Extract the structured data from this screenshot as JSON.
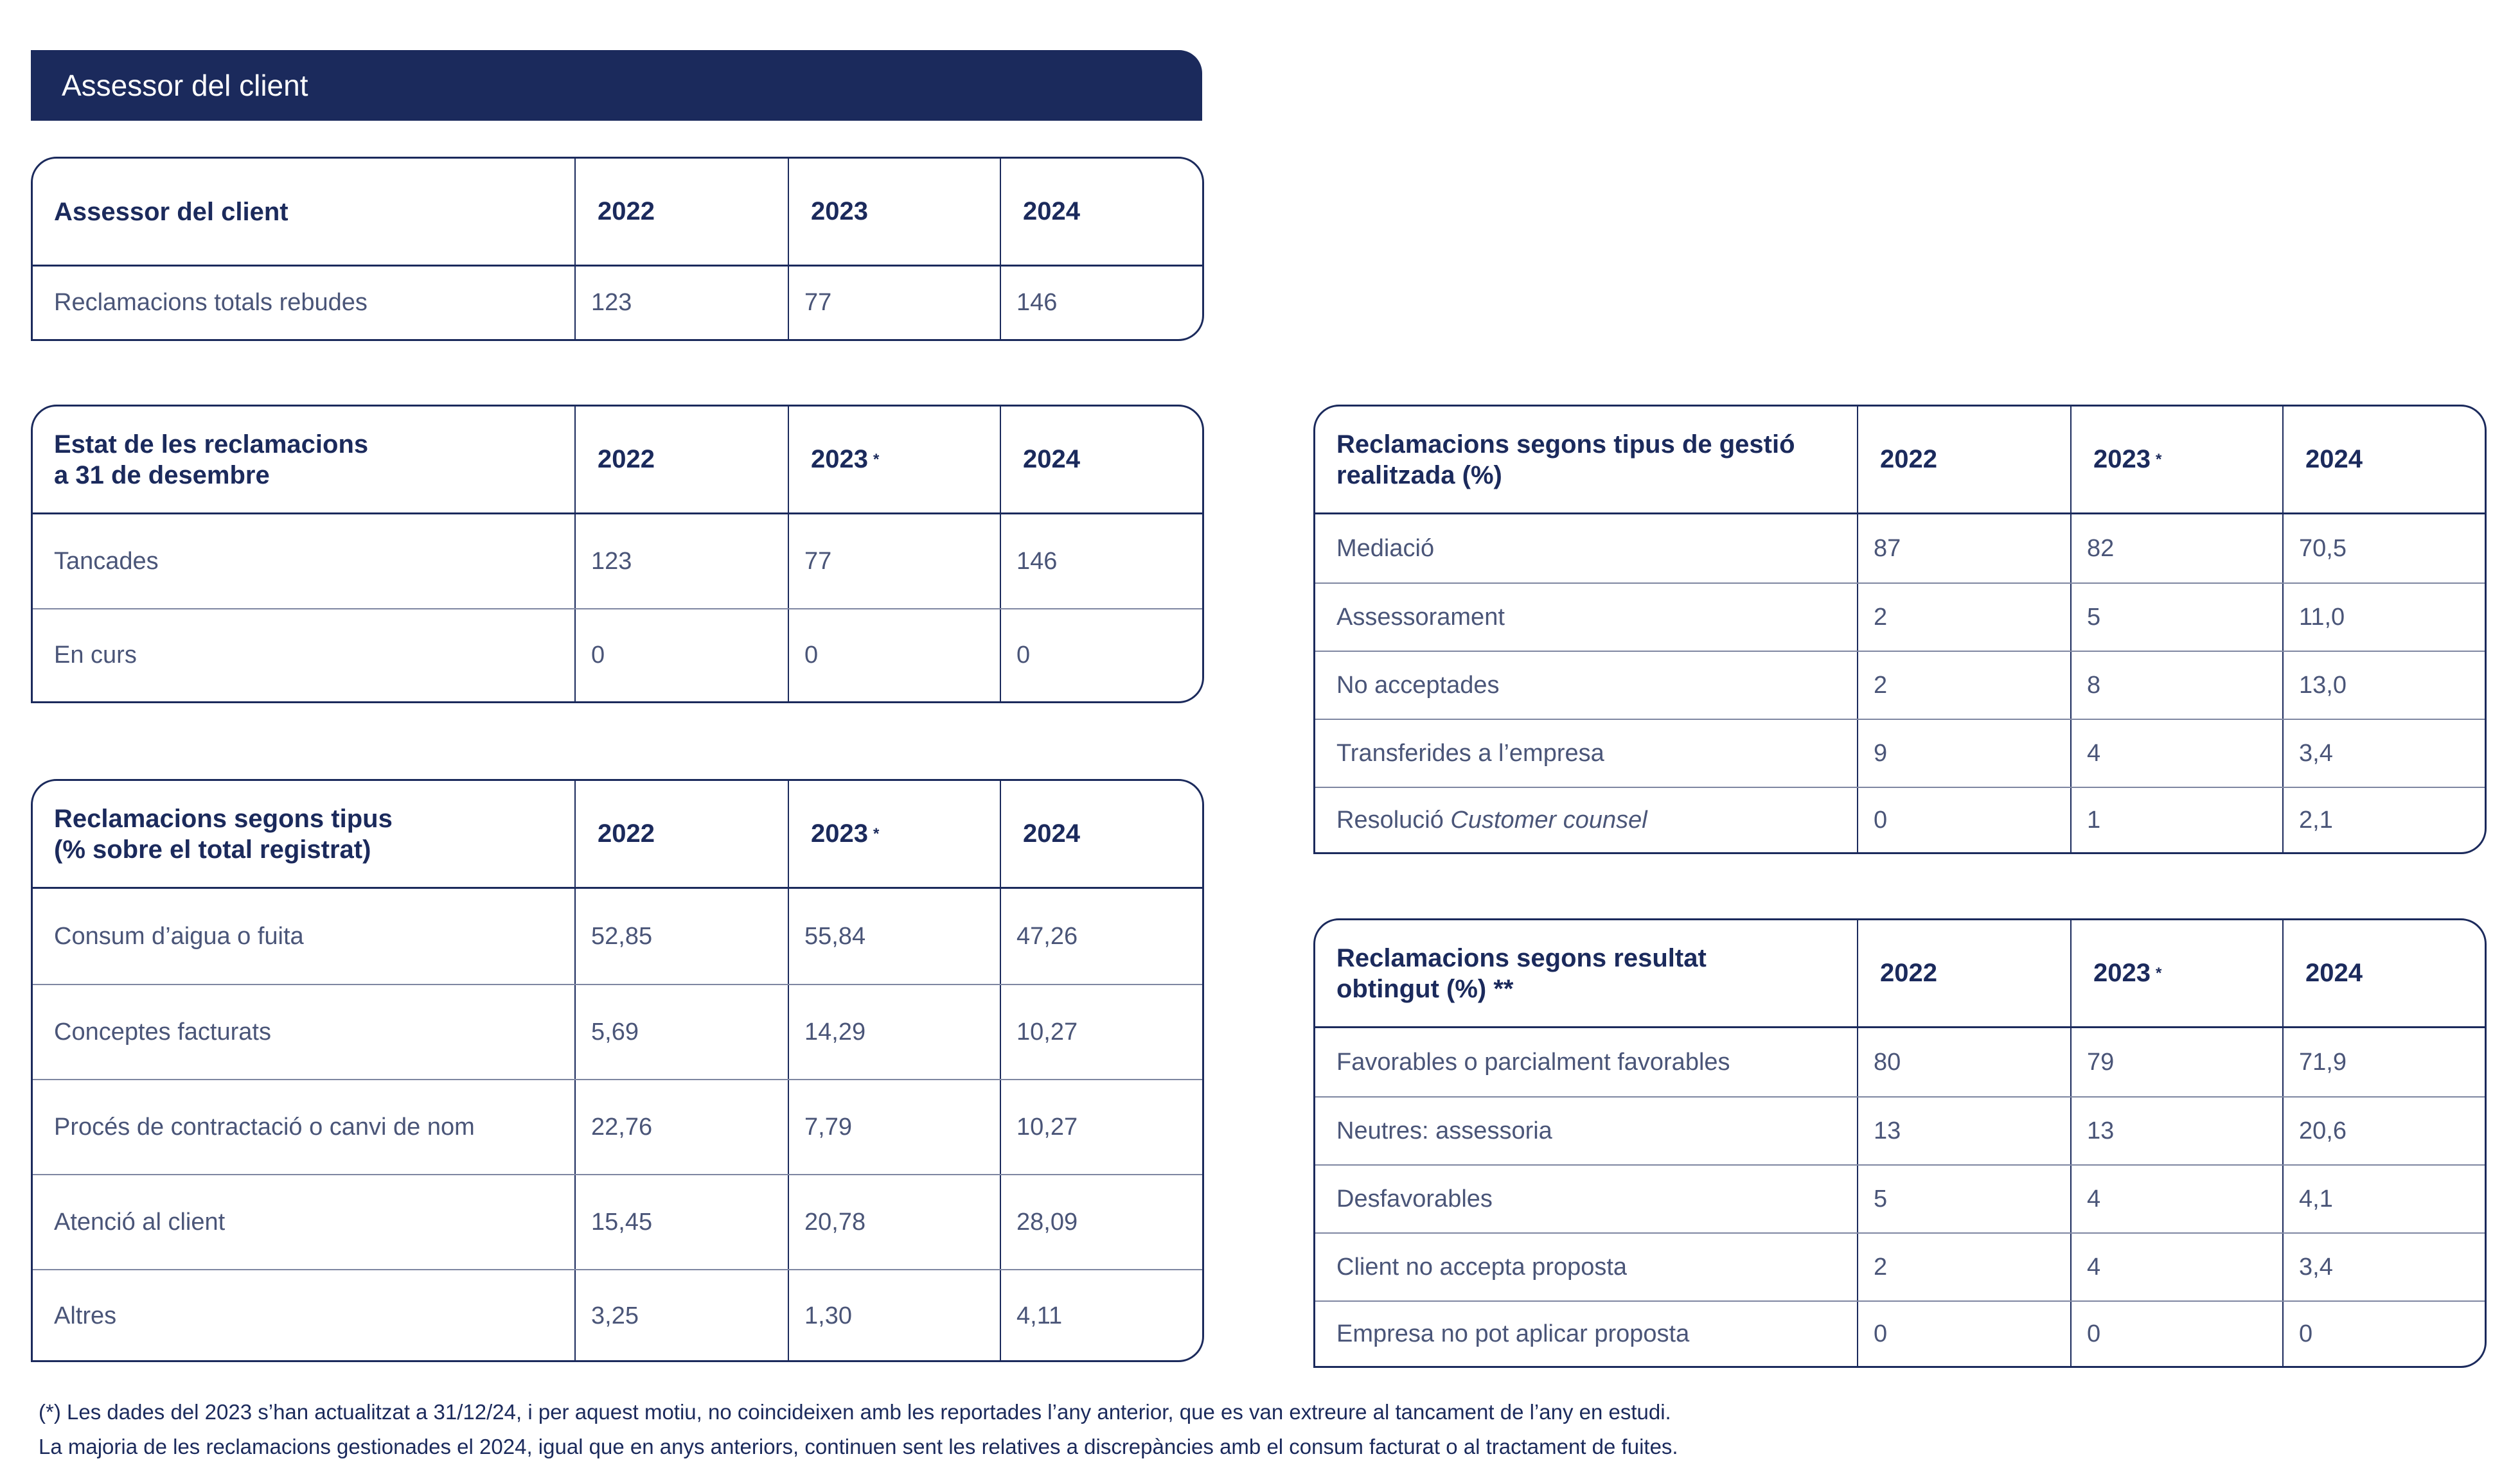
{
  "banner": {
    "title": "Assessor del client"
  },
  "t1": {
    "header": {
      "label": "Assessor del client",
      "y2022": "2022",
      "y2023": "2023",
      "y2024": "2024"
    },
    "rows": [
      {
        "label": "Reclamacions totals rebudes",
        "v2022": "123",
        "v2023": "77",
        "v2024": "146"
      }
    ]
  },
  "t2": {
    "header": {
      "label_line1": "Estat de les reclamacions",
      "label_line2": "a 31 de desembre",
      "y2022": "2022",
      "y2023": "2023",
      "y2023_mark": "*",
      "y2024": "2024"
    },
    "rows": [
      {
        "label": "Tancades",
        "v2022": "123",
        "v2023": "77",
        "v2024": "146"
      },
      {
        "label": "En curs",
        "v2022": "0",
        "v2023": "0",
        "v2024": "0"
      }
    ]
  },
  "t3": {
    "header": {
      "label_line1": "Reclamacions segons tipus",
      "label_line2": "(% sobre el total registrat)",
      "y2022": "2022",
      "y2023": "2023",
      "y2023_mark": "*",
      "y2024": "2024"
    },
    "rows": [
      {
        "label": "Consum d’aigua o fuita",
        "v2022": "52,85",
        "v2023": "55,84",
        "v2024": "47,26"
      },
      {
        "label": "Conceptes facturats",
        "v2022": "5,69",
        "v2023": "14,29",
        "v2024": "10,27"
      },
      {
        "label": "Procés de contractació o canvi de nom",
        "v2022": "22,76",
        "v2023": "7,79",
        "v2024": "10,27"
      },
      {
        "label": "Atenció al client",
        "v2022": "15,45",
        "v2023": "20,78",
        "v2024": "28,09"
      },
      {
        "label": "Altres",
        "v2022": "3,25",
        "v2023": "1,30",
        "v2024": "4,11"
      }
    ]
  },
  "t4": {
    "header": {
      "label_line1": "Reclamacions segons tipus de gestió",
      "label_line2": "realitzada (%)",
      "y2022": "2022",
      "y2023": "2023",
      "y2023_mark": "*",
      "y2024": "2024"
    },
    "rows": [
      {
        "label": "Mediació",
        "v2022": "87",
        "v2023": "82",
        "v2024": "70,5"
      },
      {
        "label": "Assessorament",
        "v2022": "2",
        "v2023": "5",
        "v2024": "11,0"
      },
      {
        "label": "No acceptades",
        "v2022": "2",
        "v2023": "8",
        "v2024": "13,0"
      },
      {
        "label": "Transferides a l’empresa",
        "v2022": "9",
        "v2023": "4",
        "v2024": "3,4"
      },
      {
        "label_plain": "Resolució ",
        "label_italic": "Customer counsel",
        "v2022": "0",
        "v2023": "1",
        "v2024": "2,1"
      }
    ]
  },
  "t5": {
    "header": {
      "label_line1": "Reclamacions segons resultat",
      "label_line2": "obtingut (%) **",
      "y2022": "2022",
      "y2023": "2023",
      "y2023_mark": "*",
      "y2024": "2024"
    },
    "rows": [
      {
        "label": "Favorables o parcialment favorables",
        "v2022": "80",
        "v2023": "79",
        "v2024": "71,9"
      },
      {
        "label": "Neutres: assessoria",
        "v2022": "13",
        "v2023": "13",
        "v2024": "20,6"
      },
      {
        "label": "Desfavorables",
        "v2022": "5",
        "v2023": "4",
        "v2024": "4,1"
      },
      {
        "label": "Client no accepta proposta",
        "v2022": "2",
        "v2023": "4",
        "v2024": "3,4"
      },
      {
        "label": "Empresa no pot aplicar proposta",
        "v2022": "0",
        "v2023": "0",
        "v2024": "0"
      }
    ]
  },
  "footnotes": {
    "line1": "(*) Les dades del 2023 s’han actualitzat a 31/12/24, i per aquest motiu, no coincideixen amb les reportades l’any anterior, que es van extreure al tancament de l’any en estudi.",
    "line2": "La majoria de les reclamacions gestionades el 2024, igual que en anys anteriors, continuen sent les relatives a discrepàncies amb el consum facturat o al tractament de fuites."
  }
}
